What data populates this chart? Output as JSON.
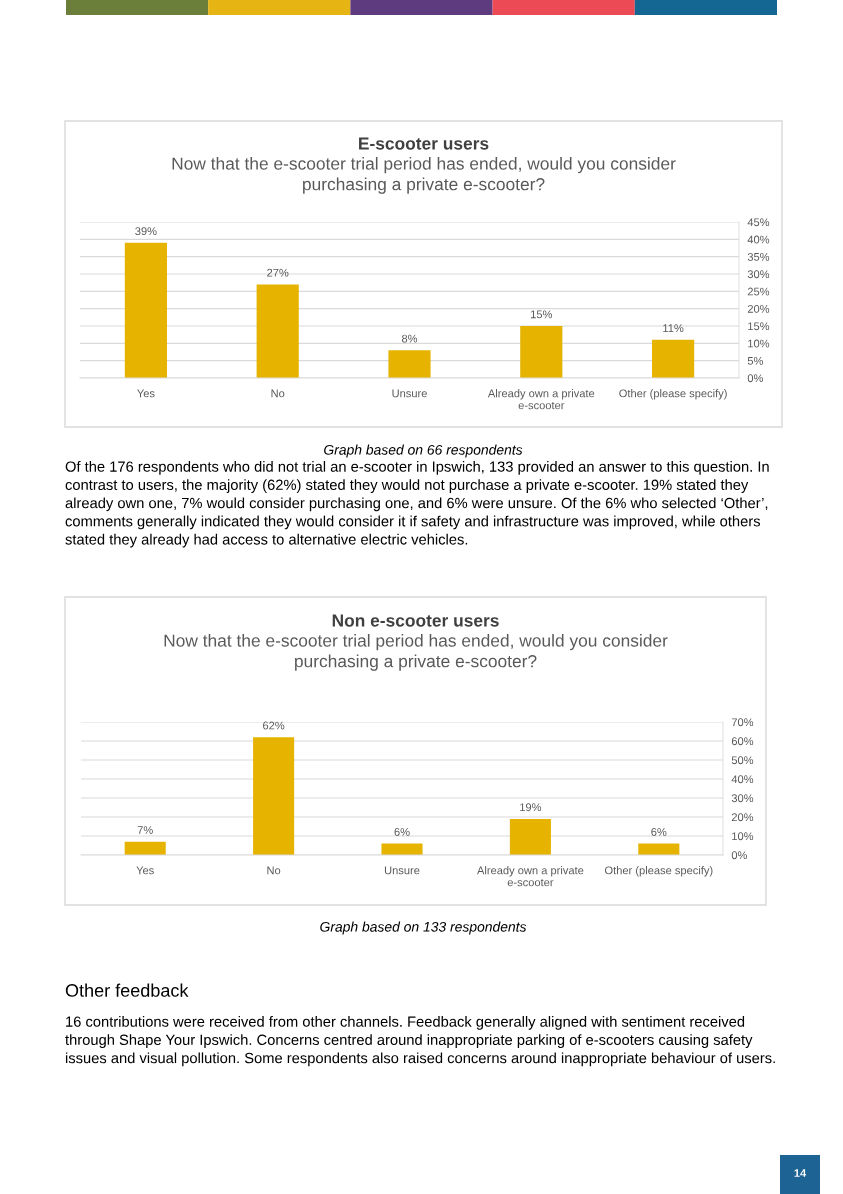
{
  "chart_data": [
    {
      "type": "bar",
      "title": "E-scooter users",
      "subtitle": "Now that the e-scooter trial period has ended, would you consider purchasing a private e-scooter?",
      "categories": [
        "Yes",
        "No",
        "Unsure",
        "Already own a private e-scooter",
        "Other (please specify)"
      ],
      "values": [
        39,
        27,
        8,
        15,
        11
      ],
      "color": "#e6b400",
      "value_labels": [
        "39%",
        "27%",
        "8%",
        "15%",
        "11%"
      ],
      "ylim": [
        0,
        45
      ],
      "yticks": [
        {
          "value": 0,
          "label": "0%"
        },
        {
          "value": 5,
          "label": "5%"
        },
        {
          "value": 10,
          "label": "10%"
        },
        {
          "value": 15,
          "label": "15%"
        },
        {
          "value": 20,
          "label": "20%"
        },
        {
          "value": 25,
          "label": "25%"
        },
        {
          "value": 30,
          "label": "30%"
        },
        {
          "value": 35,
          "label": "35%"
        },
        {
          "value": 40,
          "label": "40%"
        },
        {
          "value": 45,
          "label": "45%"
        }
      ],
      "grid": "y",
      "annotations": [
        "Graph based on 66 respondents",
        "Of the 176 respondents who did not trial an e-scooter in Ipswich, 133 provided an answer to this question. In contrast to users, the majority (62%) stated they would not purchase a private e-scooter. 19% stated they already own one, 7% would consider purchasing one, and 6% were unsure. Of the 6% who selected ‘Other’, comments generally indicated they would consider it if safety and infrastructure was improved, while others stated they already had access to alternative electric vehicles."
      ]
    },
    {
      "type": "bar",
      "title": "Non e-scooter users",
      "subtitle": "Now that the e-scooter trial period has ended, would you consider purchasing a private e-scooter?",
      "categories": [
        "Yes",
        "No",
        "Unsure",
        "Already own a private e-scooter",
        "Other (please specify)"
      ],
      "values": [
        7,
        62,
        6,
        19,
        6
      ],
      "color": "#e6b400",
      "value_labels": [
        "7%",
        "62%",
        "6%",
        "19%",
        "6%"
      ],
      "ylim": [
        0,
        70
      ],
      "yticks": [
        {
          "value": 0,
          "label": "0%"
        },
        {
          "value": 10,
          "label": "10%"
        },
        {
          "value": 20,
          "label": "20%"
        },
        {
          "value": 30,
          "label": "30%"
        },
        {
          "value": 40,
          "label": "40%"
        },
        {
          "value": 50,
          "label": "50%"
        },
        {
          "value": 60,
          "label": "60%"
        },
        {
          "value": 70,
          "label": "70%"
        }
      ],
      "grid": "y",
      "annotations": [
        "Graph based on 133 respondents",
        "Other feedback",
        "16 contributions were received from other channels. Feedback generally aligned with sentiment received through Shape Your Ipswich. Concerns centred around inappropriate parking of e-scooters causing safety issues and visual pollution. Some respondents also raised concerns around inappropriate behaviour of users.",
        "14"
      ]
    }
  ]
}
